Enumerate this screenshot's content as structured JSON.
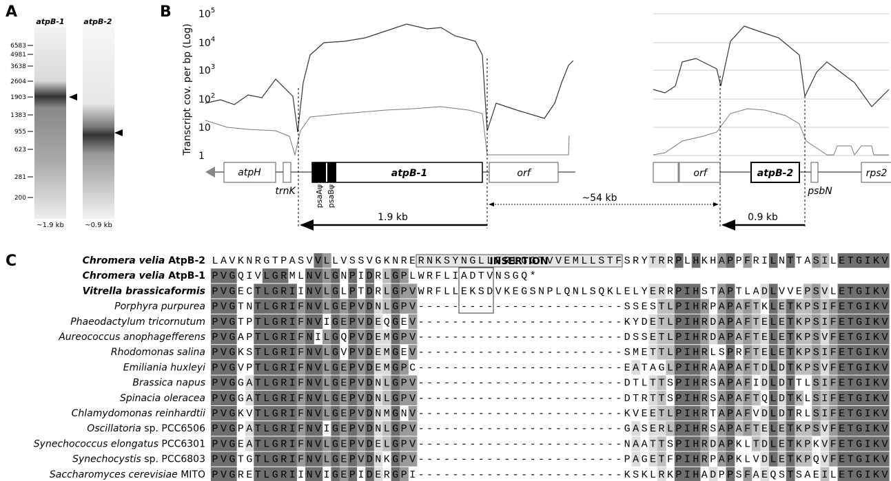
{
  "panel_a": {
    "label": "A",
    "lanes": [
      "atpB-1",
      "atpB-2"
    ],
    "markers": [
      "6583",
      "4981",
      "3638",
      "2604",
      "1903",
      "1383",
      "955",
      "623",
      "281",
      "200"
    ],
    "sizes": [
      "~1.9 kb",
      "~0.9 kb"
    ]
  },
  "panel_b": {
    "label": "B",
    "y_axis_title": "Transcript cov. per bp (Log)",
    "y_ticks": [
      {
        "base": "10",
        "exp": "5"
      },
      {
        "base": "10",
        "exp": "4"
      },
      {
        "base": "10",
        "exp": "3"
      },
      {
        "base": "10",
        "exp": "2"
      },
      {
        "base": "10"
      },
      {
        "base": "1"
      }
    ],
    "genes": {
      "atpH": "atpH",
      "trnK": "trnK",
      "atpB1": "atpB-1",
      "orf1": "orf",
      "psaA": "psaAψ",
      "psaB": "psaBψ",
      "orf2": "orf",
      "atpB2": "atpB-2",
      "psbN": "psbN",
      "rps2": "rps2"
    },
    "distances": {
      "gap": "~54 kb",
      "atpB1": "1.9 kb",
      "atpB2": "0.9 kb"
    }
  },
  "panel_c": {
    "label": "C",
    "insertion": "INSERTION",
    "rows": [
      {
        "name": "Chromera velia",
        "suffix": "AtpB-2",
        "bold": true,
        "sequence": "LAVKNRGTPASVVLLVSSVGKNRERNKSYNGLLFRLGGTVVEMLLSTFSRYTRRPLHKHAPPFRILNTTASILETGIKV"
      },
      {
        "name": "Chromera velia",
        "suffix": "AtpB-1",
        "bold": true,
        "sequence": "PVGQIVLGRMLNVLGNPIDRLGPLWRFLIADTVNSGQ*"
      },
      {
        "name": "Vitrella brassicaformis",
        "bold": true,
        "sequence": "PVGECTLGRIINVLGLPTDRLGPVWRFLLEKSDVKEGSNPLQNLSQKLELYERRPIHSTAPTLADLVVEPSVLETGIKV"
      },
      {
        "name": "Porphyra purpurea",
        "sequence": "PVGTNTLGRIFNVLGEPVDNLGPV------------------------SSESTLPIHRPAPAFTKLETKPSIFETGIKV"
      },
      {
        "name": "Phaeodactylum tricornutum",
        "sequence": "PVGTPTLGRIFNVIGEPVDEQGEV------------------------KYDETLPIHRDAPAFTELETKPSIFETGIKV"
      },
      {
        "name": "Aureococcus anophagefferens",
        "sequence": "PVGAPTLGRIFNILGQPVDEMGPV------------------------DSSETLPIHRDAPAFTELETKPSVFETGIKV"
      },
      {
        "name": "Rhodomonas salina",
        "sequence": "PVGKSTLGRIFNVLGVPVDEMGEV------------------------SMETTLPIHRLSPRFTELETKPSIFETGIKV"
      },
      {
        "name": "Emiliania huxleyi",
        "sequence": "PVGVPTLGRIFNVLGEPVDEMGPC------------------------EATAGLPIHRAAPAFTDLDTKPSVFETGIKV"
      },
      {
        "name": "Brassica napus",
        "sequence": "PVGGATLGRIFNVLGEPVDNLGPV------------------------DTLTTSPIHRSAPAFIDLDTTLSIFETGIKV"
      },
      {
        "name": "Spinacia oleracea",
        "sequence": "PVGGATLGRIFNVLGEPVDNLGPV------------------------DTRTTSPIHRSAPAFTQLDTKLSIFETGIKV"
      },
      {
        "name": "Chlamydomonas reinhardtii",
        "sequence": "PVGKVTLGRIFNVLGEPVDNMGNV------------------------KVEETLPIHRTAPAFVDLDTRLSIFETGIKV"
      },
      {
        "name": "Oscillatoria",
        "suffix": "sp. PCC6506",
        "sequence": "PVGPATLGRIFNVIGEPVDNLGPV------------------------GASERLPIHRSAPAFTELETKPSVFETGIKV"
      },
      {
        "name": "Synechococcus elongatus",
        "suffix": "PCC6301",
        "sequence": "PVGEATLGRIFNVLGEPVDELGPV------------------------NAATTSPIHRDAPKLTDLETKPKVFETGIKV"
      },
      {
        "name": "Synechocystis",
        "suffix": "sp. PCC6803",
        "sequence": "PVGTGTLGRIFNVLGEPVDNKGPV------------------------PAGETFPIHRPAPKLVDLETKPQVFETGIKV"
      },
      {
        "name": "Saccharomyces cerevisiae",
        "suffix": "MITO",
        "sequence": "PVGRETLGRIINVIGEPIDERGPI------------------------KSKLRKPIHADPPSFAEQSTSAEILETGIKV"
      }
    ]
  }
}
